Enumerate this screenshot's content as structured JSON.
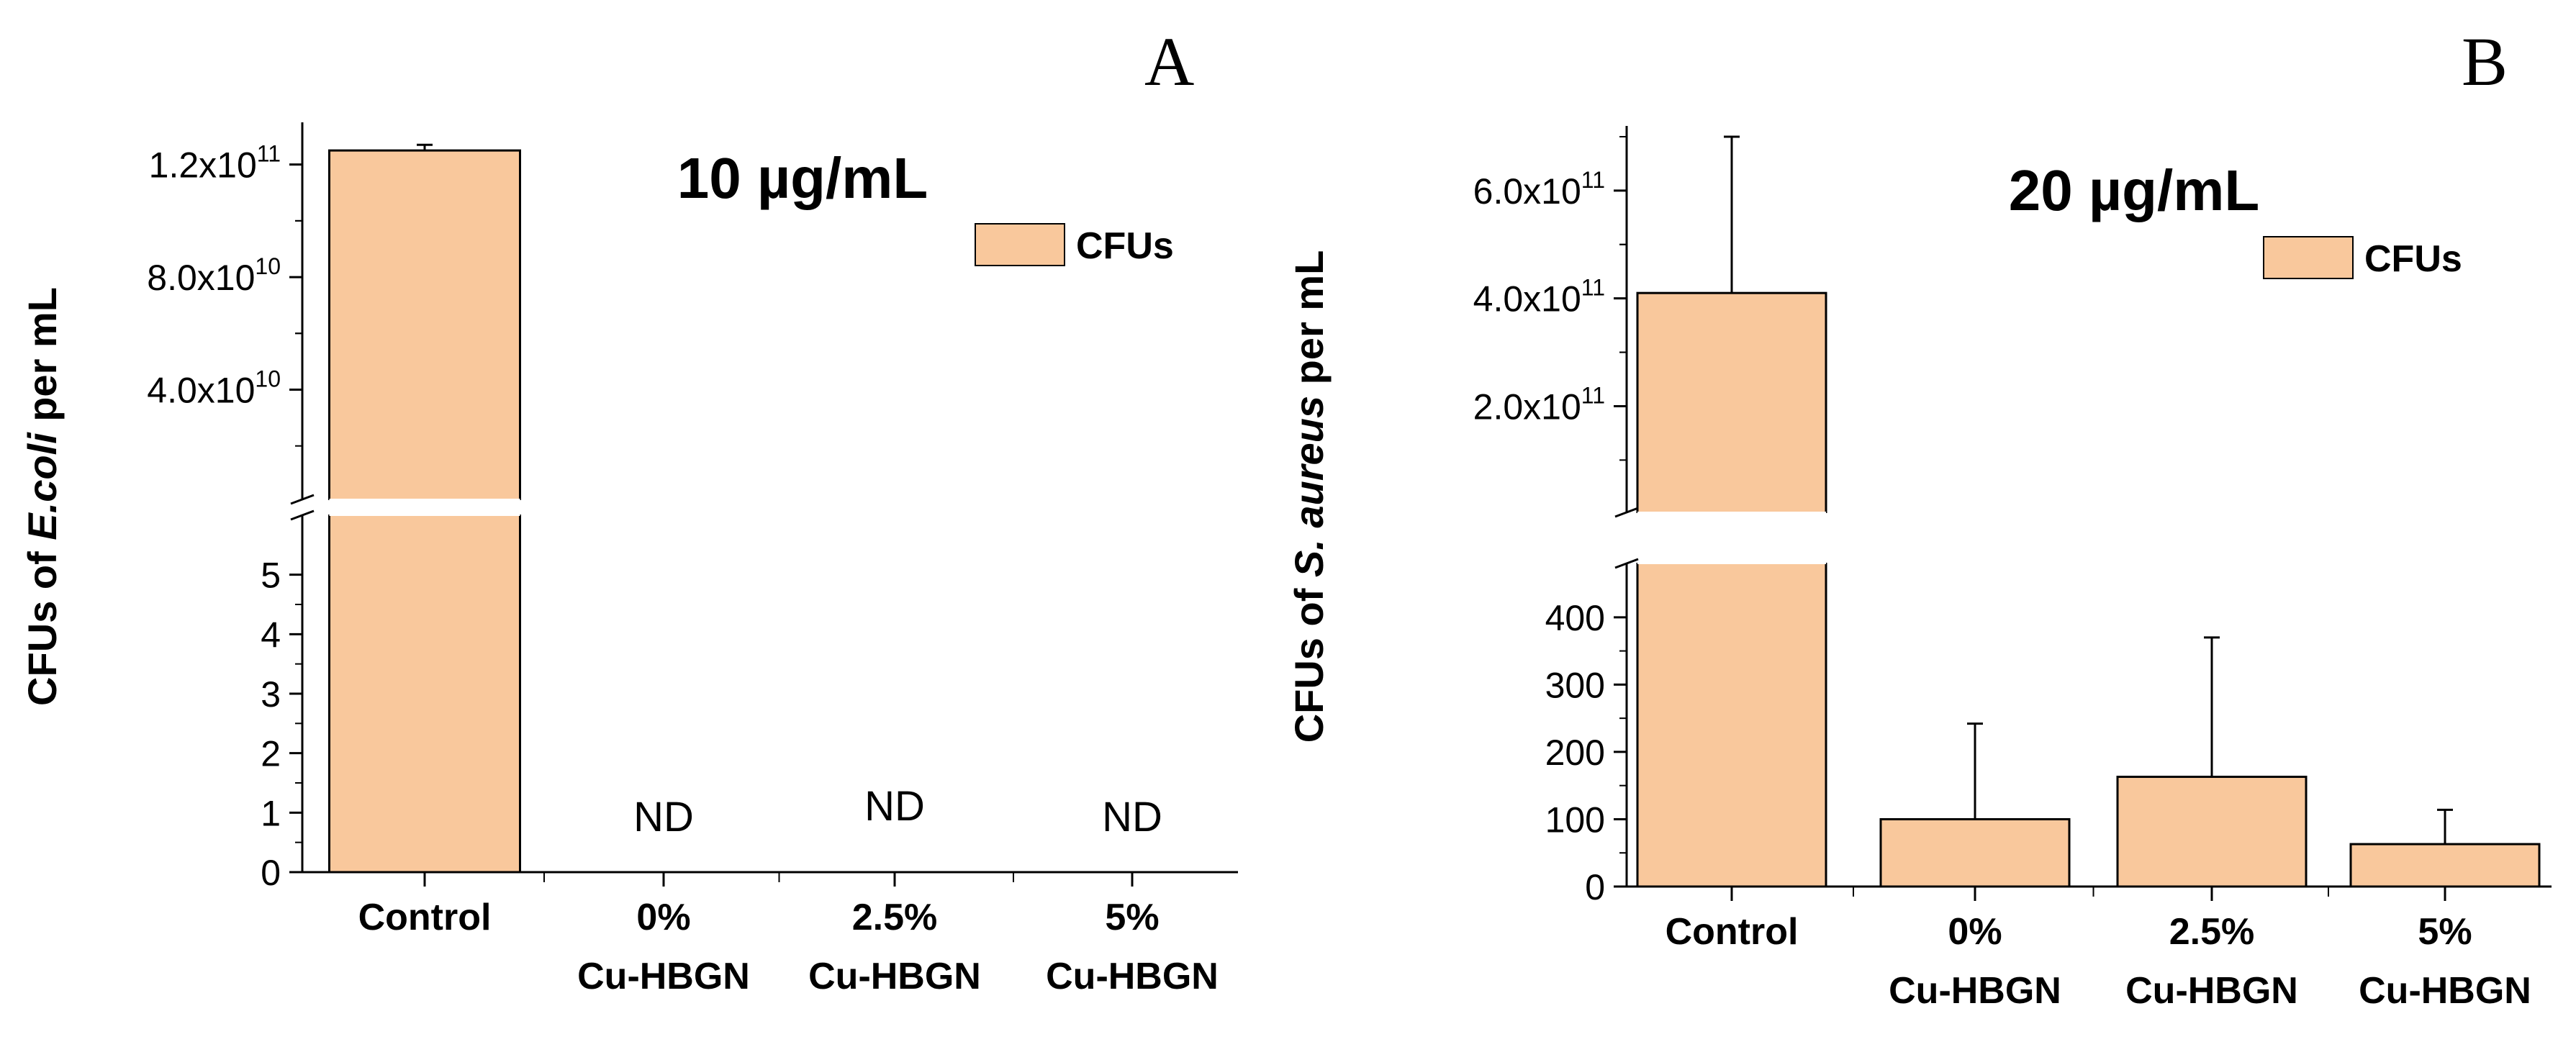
{
  "chart_data": [
    {
      "panel_label": "A",
      "type": "bar",
      "title": "10 µg/mL",
      "ylabel": {
        "prefix": "CFUs of ",
        "italic": "E.coli",
        "suffix": " per mL"
      },
      "legend": {
        "label": "CFUs",
        "position": "top-right"
      },
      "categories": [
        {
          "line1": "Control",
          "line2": ""
        },
        {
          "line1": "0%",
          "line2": "Cu-HBGN"
        },
        {
          "line1": "2.5%",
          "line2": "Cu-HBGN"
        },
        {
          "line1": "5%",
          "line2": "Cu-HBGN"
        }
      ],
      "values": [
        125000000000,
        0,
        0,
        0
      ],
      "errors": [
        2000000000,
        0,
        0,
        0
      ],
      "bar_labels": [
        "",
        "ND",
        "ND",
        "ND"
      ],
      "color": "#F9C89C",
      "y_break": true,
      "lower_ylim": [
        0,
        6
      ],
      "lower_ticks": [
        {
          "v": 0,
          "label": "0"
        },
        {
          "v": 1,
          "label": "1"
        },
        {
          "v": 2,
          "label": "2"
        },
        {
          "v": 3,
          "label": "3"
        },
        {
          "v": 4,
          "label": "4"
        },
        {
          "v": 5,
          "label": "5"
        }
      ],
      "upper_ylim": [
        1000000000,
        135000000000
      ],
      "upper_ticks": [
        {
          "v": 40000000000,
          "base": "4.0x10",
          "exp": "10"
        },
        {
          "v": 80000000000,
          "base": "8.0x10",
          "exp": "10"
        },
        {
          "v": 120000000000,
          "base": "1.2x10",
          "exp": "11"
        }
      ]
    },
    {
      "panel_label": "B",
      "type": "bar",
      "title": "20 µg/mL",
      "ylabel": {
        "prefix": "CFUs of ",
        "italic": "S. aureus",
        "suffix": " per mL"
      },
      "legend": {
        "label": "CFUs",
        "position": "top-right"
      },
      "categories": [
        {
          "line1": "Control",
          "line2": ""
        },
        {
          "line1": "0%",
          "line2": "Cu-HBGN"
        },
        {
          "line1": "2.5%",
          "line2": "Cu-HBGN"
        },
        {
          "line1": "5%",
          "line2": "Cu-HBGN"
        }
      ],
      "values": [
        410000000000,
        100,
        163,
        63
      ],
      "errors": [
        290000000000,
        142,
        207,
        51
      ],
      "bar_labels": [
        "",
        "",
        "",
        ""
      ],
      "color": "#F9C89C",
      "y_break": true,
      "lower_ylim": [
        0,
        480
      ],
      "lower_ticks": [
        {
          "v": 0,
          "label": "0"
        },
        {
          "v": 100,
          "label": "100"
        },
        {
          "v": 200,
          "label": "200"
        },
        {
          "v": 300,
          "label": "300"
        },
        {
          "v": 400,
          "label": "400"
        }
      ],
      "upper_ylim": [
        3000000000,
        720000000000
      ],
      "upper_ticks": [
        {
          "v": 200000000000,
          "base": "2.0x10",
          "exp": "11"
        },
        {
          "v": 400000000000,
          "base": "4.0x10",
          "exp": "11"
        },
        {
          "v": 600000000000,
          "base": "6.0x10",
          "exp": "11"
        }
      ]
    }
  ]
}
